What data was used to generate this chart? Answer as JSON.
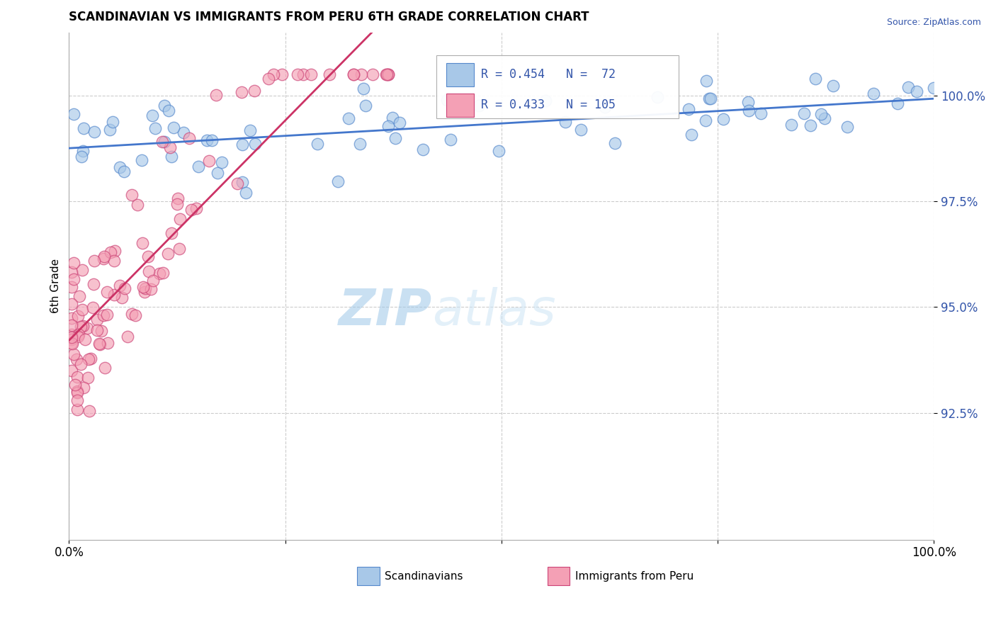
{
  "title": "SCANDINAVIAN VS IMMIGRANTS FROM PERU 6TH GRADE CORRELATION CHART",
  "source": "Source: ZipAtlas.com",
  "ylabel": "6th Grade",
  "color_blue": "#a8c8e8",
  "color_pink": "#f4a0b5",
  "edge_blue": "#5588cc",
  "edge_pink": "#cc4477",
  "trendline_blue": "#4477cc",
  "trendline_pink": "#cc3366",
  "legend_label1": "R = 0.454   N =  72",
  "legend_label2": "R = 0.433   N = 105",
  "legend_text_color": "#3355aa",
  "xmin": 0.0,
  "xmax": 1.0,
  "ymin": 89.5,
  "ymax": 101.5,
  "yticks": [
    92.5,
    95.0,
    97.5,
    100.0
  ],
  "watermark_color": "#cce4f5",
  "watermark_zip_color": "#9ec8e8"
}
